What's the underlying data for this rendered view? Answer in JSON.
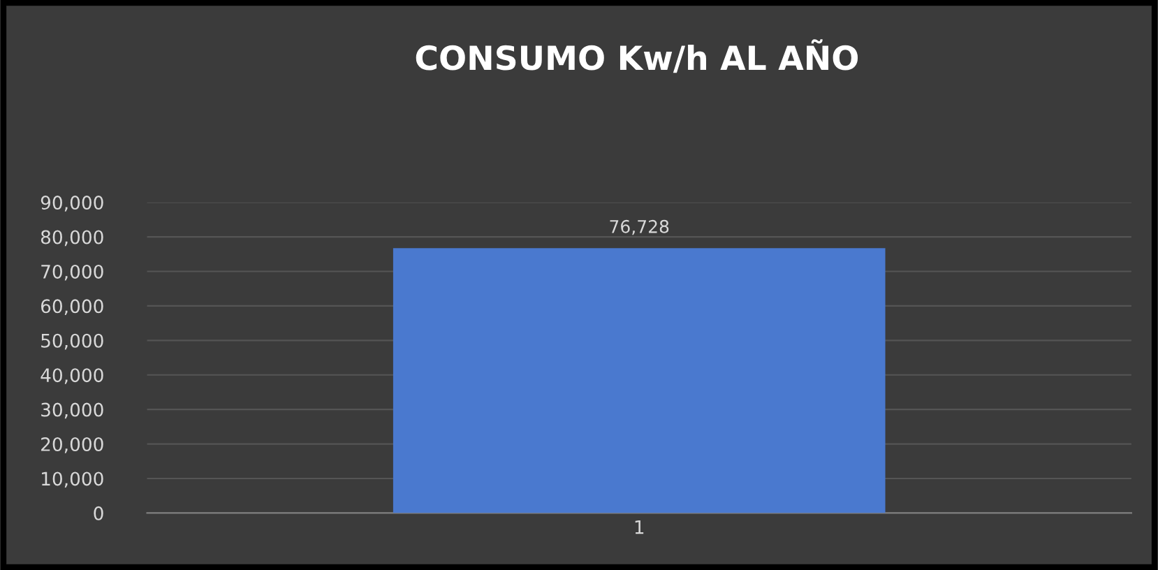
{
  "chart_data": {
    "type": "bar",
    "title": "CONSUMO Kw/h AL AÑO",
    "categories": [
      "1"
    ],
    "series": [
      {
        "color": "#4a79cf",
        "values": [
          76728
        ]
      }
    ],
    "value_labels": [
      "76,728"
    ],
    "ylim": [
      0,
      90000
    ],
    "yticks": [
      0,
      {
        "value": 10000,
        "label": "10,000"
      },
      {
        "value": 20000,
        "label": "20,000"
      },
      {
        "value": 30000,
        "label": "30,000"
      },
      {
        "value": 40000,
        "label": "40,000"
      },
      {
        "value": 50000,
        "label": "50,000"
      },
      {
        "value": 60000,
        "label": "60,000"
      },
      {
        "value": 70000,
        "label": "70,000"
      },
      {
        "value": 80000,
        "label": "80,000"
      },
      {
        "value": 90000,
        "label": "90,000"
      }
    ],
    "grid": "y"
  }
}
